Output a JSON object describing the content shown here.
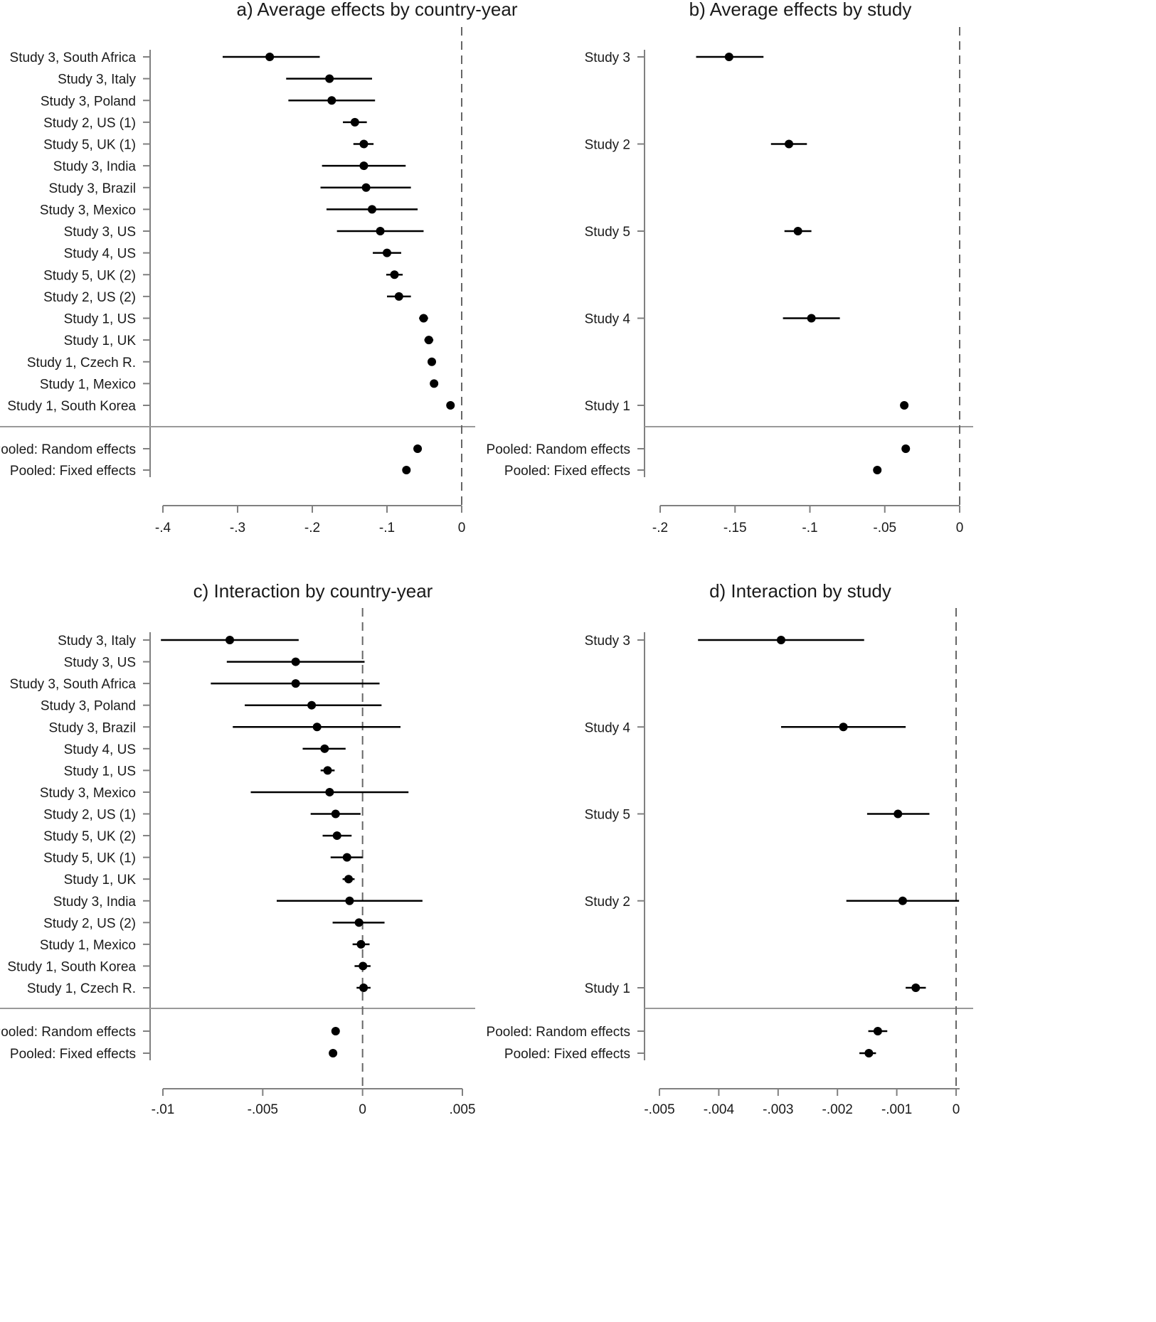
{
  "figure": {
    "description_colors": {
      "mark": "#000000",
      "axis": "#808080",
      "separator": "#9a9a9a",
      "refline": "#666666"
    }
  },
  "chart_data": [
    {
      "id": "a",
      "type": "forest",
      "title": "a) Average effects by country-year",
      "xlim": [
        -0.4,
        0.0
      ],
      "xticks": [
        {
          "value": -0.4,
          "label": "-.4"
        },
        {
          "value": -0.3,
          "label": "-.3"
        },
        {
          "value": -0.2,
          "label": "-.2"
        },
        {
          "value": -0.1,
          "label": "-.1"
        },
        {
          "value": 0.0,
          "label": "0"
        }
      ],
      "reference_line": 0,
      "rows": [
        {
          "label": "Study 3, South Africa",
          "est": -0.257,
          "lo": -0.32,
          "hi": -0.19
        },
        {
          "label": "Study 3, Italy",
          "est": -0.177,
          "lo": -0.235,
          "hi": -0.12
        },
        {
          "label": "Study 3, Poland",
          "est": -0.174,
          "lo": -0.232,
          "hi": -0.116
        },
        {
          "label": "Study 2, US (1)",
          "est": -0.143,
          "lo": -0.159,
          "hi": -0.127
        },
        {
          "label": "Study 5, UK (1)",
          "est": -0.131,
          "lo": -0.145,
          "hi": -0.118
        },
        {
          "label": "Study 3, India",
          "est": -0.131,
          "lo": -0.187,
          "hi": -0.075
        },
        {
          "label": "Study 3, Brazil",
          "est": -0.128,
          "lo": -0.189,
          "hi": -0.068
        },
        {
          "label": "Study 3, Mexico",
          "est": -0.12,
          "lo": -0.181,
          "hi": -0.059
        },
        {
          "label": "Study 3, US",
          "est": -0.109,
          "lo": -0.167,
          "hi": -0.051
        },
        {
          "label": "Study 4, US",
          "est": -0.1,
          "lo": -0.119,
          "hi": -0.081
        },
        {
          "label": "Study 5, UK (2)",
          "est": -0.09,
          "lo": -0.101,
          "hi": -0.079
        },
        {
          "label": "Study 2, US (2)",
          "est": -0.084,
          "lo": -0.1,
          "hi": -0.068
        },
        {
          "label": "Study 1, US",
          "est": -0.051,
          "lo": -0.057,
          "hi": -0.045
        },
        {
          "label": "Study 1, UK",
          "est": -0.044,
          "lo": -0.05,
          "hi": -0.038
        },
        {
          "label": "Study 1, Czech R.",
          "est": -0.04,
          "lo": -0.045,
          "hi": -0.035
        },
        {
          "label": "Study 1, Mexico",
          "est": -0.037,
          "lo": -0.042,
          "hi": -0.032
        },
        {
          "label": "Study 1, South Korea",
          "est": -0.015,
          "lo": -0.02,
          "hi": -0.01
        }
      ],
      "pooled": [
        {
          "label": "Pooled: Random effects",
          "est": -0.059,
          "lo": -0.063,
          "hi": -0.055
        },
        {
          "label": "Pooled: Fixed effects",
          "est": -0.074,
          "lo": -0.077,
          "hi": -0.071
        }
      ]
    },
    {
      "id": "b",
      "type": "forest",
      "title": "b) Average effects by study",
      "xlim": [
        -0.2,
        0.0
      ],
      "xticks": [
        {
          "value": -0.2,
          "label": "-.2"
        },
        {
          "value": -0.15,
          "label": "-.15"
        },
        {
          "value": -0.1,
          "label": "-.1"
        },
        {
          "value": -0.05,
          "label": "-.05"
        },
        {
          "value": 0.0,
          "label": "0"
        }
      ],
      "reference_line": 0,
      "rows": [
        {
          "label": "Study 3",
          "est": -0.154,
          "lo": -0.176,
          "hi": -0.131
        },
        {
          "label": "Study 2",
          "est": -0.114,
          "lo": -0.126,
          "hi": -0.102
        },
        {
          "label": "Study 5",
          "est": -0.108,
          "lo": -0.117,
          "hi": -0.099
        },
        {
          "label": "Study 4",
          "est": -0.099,
          "lo": -0.118,
          "hi": -0.08
        },
        {
          "label": "Study 1",
          "est": -0.037,
          "lo": -0.039,
          "hi": -0.035
        }
      ],
      "pooled": [
        {
          "label": "Pooled: Random effects",
          "est": -0.036,
          "lo": -0.038,
          "hi": -0.034
        },
        {
          "label": "Pooled: Fixed effects",
          "est": -0.055,
          "lo": -0.057,
          "hi": -0.053
        }
      ]
    },
    {
      "id": "c",
      "type": "forest",
      "title": "c) Interaction by country-year",
      "xlim": [
        -0.01,
        0.005
      ],
      "xticks": [
        {
          "value": -0.01,
          "label": "-.01"
        },
        {
          "value": -0.005,
          "label": "-.005"
        },
        {
          "value": 0.0,
          "label": "0"
        },
        {
          "value": 0.005,
          "label": ".005"
        }
      ],
      "reference_line": 0,
      "rows": [
        {
          "label": "Study 3, Italy",
          "est": -0.00665,
          "lo": -0.0101,
          "hi": -0.0032
        },
        {
          "label": "Study 3, US",
          "est": -0.00335,
          "lo": -0.0068,
          "hi": 0.0001
        },
        {
          "label": "Study 3, South Africa",
          "est": -0.00335,
          "lo": -0.0076,
          "hi": 0.00085
        },
        {
          "label": "Study 3, Poland",
          "est": -0.00255,
          "lo": -0.0059,
          "hi": 0.00095
        },
        {
          "label": "Study 3, Brazil",
          "est": -0.00228,
          "lo": -0.0065,
          "hi": 0.0019
        },
        {
          "label": "Study 4, US",
          "est": -0.0019,
          "lo": -0.003,
          "hi": -0.00085
        },
        {
          "label": "Study 1, US",
          "est": -0.00175,
          "lo": -0.0021,
          "hi": -0.0014
        },
        {
          "label": "Study 3, Mexico",
          "est": -0.00165,
          "lo": -0.0056,
          "hi": 0.0023
        },
        {
          "label": "Study 2, US (1)",
          "est": -0.00135,
          "lo": -0.0026,
          "hi": -0.0001
        },
        {
          "label": "Study 5, UK (2)",
          "est": -0.00128,
          "lo": -0.002,
          "hi": -0.00055
        },
        {
          "label": "Study 5, UK (1)",
          "est": -0.00078,
          "lo": -0.0016,
          "hi": 0.0
        },
        {
          "label": "Study 1, UK",
          "est": -0.0007,
          "lo": -0.001,
          "hi": -0.0004
        },
        {
          "label": "Study 3, India",
          "est": -0.00065,
          "lo": -0.0043,
          "hi": 0.003
        },
        {
          "label": "Study 2, US (2)",
          "est": -0.00018,
          "lo": -0.0015,
          "hi": 0.0011
        },
        {
          "label": "Study 1, Mexico",
          "est": -8e-05,
          "lo": -0.0005,
          "hi": 0.00035
        },
        {
          "label": "Study 1, South Korea",
          "est": 2e-05,
          "lo": -0.0004,
          "hi": 0.0004
        },
        {
          "label": "Study 1, Czech R.",
          "est": 5e-05,
          "lo": -0.0003,
          "hi": 0.0004
        }
      ],
      "pooled": [
        {
          "label": "Pooled: Random effects",
          "est": -0.00135,
          "lo": -0.0015,
          "hi": -0.0012
        },
        {
          "label": "Pooled: Fixed effects",
          "est": -0.00148,
          "lo": -0.0016,
          "hi": -0.00136
        }
      ]
    },
    {
      "id": "d",
      "type": "forest",
      "title": "d) Interaction by study",
      "xlim": [
        -0.005,
        0.0
      ],
      "xticks": [
        {
          "value": -0.005,
          "label": "-.005"
        },
        {
          "value": -0.004,
          "label": "-.004"
        },
        {
          "value": -0.003,
          "label": "-.003"
        },
        {
          "value": -0.002,
          "label": "-.002"
        },
        {
          "value": -0.001,
          "label": "-.001"
        },
        {
          "value": 0.0,
          "label": "0"
        }
      ],
      "reference_line": 0,
      "rows": [
        {
          "label": "Study 3",
          "est": -0.00295,
          "lo": -0.00435,
          "hi": -0.00155
        },
        {
          "label": "Study 4",
          "est": -0.0019,
          "lo": -0.00295,
          "hi": -0.00085
        },
        {
          "label": "Study 5",
          "est": -0.00098,
          "lo": -0.0015,
          "hi": -0.00045
        },
        {
          "label": "Study 2",
          "est": -0.0009,
          "lo": -0.00185,
          "hi": 5e-05
        },
        {
          "label": "Study 1",
          "est": -0.00068,
          "lo": -0.00085,
          "hi": -0.00051
        }
      ],
      "pooled": [
        {
          "label": "Pooled: Random effects",
          "est": -0.00132,
          "lo": -0.00148,
          "hi": -0.00116
        },
        {
          "label": "Pooled: Fixed effects",
          "est": -0.00147,
          "lo": -0.00163,
          "hi": -0.00135
        }
      ]
    }
  ]
}
